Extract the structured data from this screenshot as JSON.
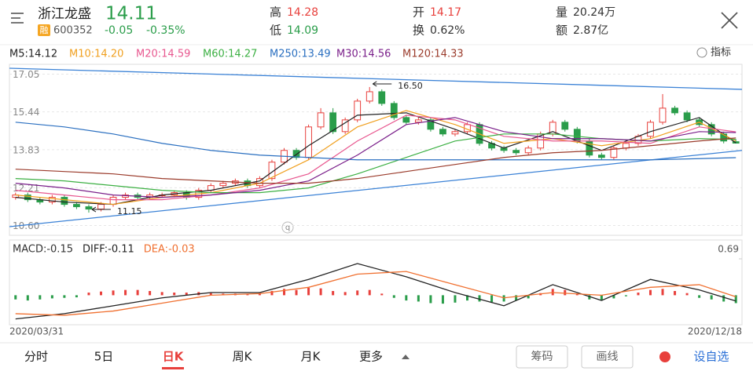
{
  "header": {
    "name": "浙江龙盛",
    "price": "14.11",
    "badge": "融",
    "code": "600352",
    "change": "-0.05",
    "change_pct": "-0.35%",
    "stats": [
      {
        "label": "高",
        "value": "14.28"
      },
      {
        "label": "低",
        "value": "14.09"
      },
      {
        "label": "开",
        "value": "14.17"
      },
      {
        "label": "换",
        "value": "0.62%"
      },
      {
        "label": "量",
        "value": "20.24万"
      },
      {
        "label": "额",
        "value": "2.87亿"
      }
    ]
  },
  "indicator_button": "指标",
  "chart_data": [
    {
      "type": "candlestick",
      "up_color": "#e8403c",
      "down_color": "#2a9d4a",
      "grid": true,
      "xlim": [
        -0.5,
        59.5
      ],
      "ylim": [
        10.45,
        17.2
      ],
      "yticks": [
        17.05,
        15.44,
        13.83,
        12.21,
        {
          "value": 10.6,
          "label": "10.60"
        }
      ],
      "open": [
        11.8,
        11.9,
        11.7,
        11.6,
        11.8,
        11.5,
        11.4,
        11.3,
        11.5,
        11.8,
        11.9,
        11.8,
        11.9,
        11.9,
        12.0,
        11.8,
        12.1,
        12.3,
        12.4,
        12.5,
        12.3,
        12.6,
        13.3,
        13.8,
        13.5,
        14.8,
        15.4,
        14.6,
        15.1,
        15.9,
        16.3,
        15.8,
        15.2,
        15.0,
        15.1,
        14.7,
        14.5,
        14.6,
        14.9,
        14.1,
        13.9,
        13.8,
        13.7,
        13.9,
        14.5,
        15.0,
        14.7,
        14.2,
        13.6,
        13.5,
        13.9,
        14.1,
        14.4,
        15.0,
        15.6,
        15.4,
        15.1,
        14.9,
        14.5,
        14.17
      ],
      "high": [
        12.0,
        12.0,
        11.8,
        11.9,
        11.9,
        11.6,
        11.5,
        11.6,
        11.9,
        12.0,
        12.0,
        12.0,
        12.0,
        12.1,
        12.1,
        12.2,
        12.4,
        12.5,
        12.6,
        12.6,
        12.7,
        13.4,
        13.9,
        13.9,
        14.9,
        15.6,
        15.6,
        15.2,
        16.0,
        16.5,
        16.4,
        15.9,
        15.3,
        15.2,
        15.2,
        14.8,
        14.7,
        15.0,
        15.0,
        14.2,
        14.0,
        13.9,
        14.0,
        14.6,
        15.1,
        15.1,
        14.8,
        14.3,
        13.7,
        14.0,
        14.2,
        14.5,
        15.1,
        16.2,
        15.7,
        15.5,
        15.2,
        15.0,
        14.6,
        14.28
      ],
      "low": [
        11.7,
        11.6,
        11.5,
        11.5,
        11.4,
        11.3,
        11.15,
        11.2,
        11.4,
        11.7,
        11.7,
        11.7,
        11.8,
        11.8,
        11.7,
        11.7,
        12.0,
        12.2,
        12.3,
        12.2,
        12.2,
        12.5,
        13.2,
        13.4,
        13.4,
        14.7,
        14.5,
        14.5,
        15.0,
        15.8,
        15.7,
        15.1,
        14.9,
        14.9,
        14.6,
        14.4,
        14.4,
        14.5,
        14.0,
        13.8,
        13.7,
        13.6,
        13.6,
        13.8,
        14.4,
        14.6,
        14.1,
        13.5,
        13.4,
        13.4,
        13.8,
        14.0,
        14.3,
        14.9,
        15.3,
        15.0,
        14.8,
        14.4,
        14.1,
        14.09
      ],
      "close": [
        11.9,
        11.7,
        11.6,
        11.8,
        11.5,
        11.4,
        11.3,
        11.5,
        11.8,
        11.9,
        11.8,
        11.9,
        11.9,
        12.0,
        11.8,
        12.1,
        12.3,
        12.4,
        12.5,
        12.3,
        12.6,
        13.3,
        13.8,
        13.5,
        14.8,
        15.4,
        14.6,
        15.1,
        15.9,
        16.3,
        15.8,
        15.2,
        15.0,
        15.1,
        14.7,
        14.5,
        14.6,
        14.9,
        14.1,
        13.9,
        13.8,
        13.7,
        13.9,
        14.5,
        15.0,
        14.7,
        14.2,
        13.6,
        13.5,
        13.9,
        14.1,
        14.4,
        15.0,
        15.6,
        15.4,
        15.1,
        14.9,
        14.5,
        14.2,
        14.11
      ],
      "ma_x": [
        0,
        4,
        8,
        12,
        16,
        20,
        24,
        28,
        32,
        36,
        40,
        44,
        48,
        52,
        56,
        59
      ],
      "series": [
        {
          "name": "M5:14.12",
          "color": "#222222",
          "values": [
            11.8,
            11.6,
            11.5,
            11.9,
            12.1,
            12.5,
            14.0,
            15.3,
            15.4,
            14.7,
            13.9,
            14.6,
            13.8,
            14.6,
            15.2,
            14.12
          ]
        },
        {
          "name": "M10:14.20",
          "color": "#f0a020",
          "values": [
            11.9,
            11.7,
            11.5,
            11.8,
            12.0,
            12.4,
            13.4,
            14.8,
            15.5,
            14.9,
            14.1,
            14.3,
            14.0,
            14.3,
            15.0,
            14.2
          ]
        },
        {
          "name": "M20:14.59",
          "color": "#e8578f",
          "values": [
            12.1,
            11.9,
            11.7,
            11.7,
            11.9,
            12.2,
            12.8,
            14.2,
            15.3,
            15.1,
            14.4,
            14.2,
            14.2,
            14.1,
            14.8,
            14.59
          ]
        },
        {
          "name": "M60:14.27",
          "color": "#3cb043",
          "values": [
            12.6,
            12.5,
            12.3,
            12.1,
            12.0,
            12.0,
            12.2,
            12.8,
            13.5,
            14.2,
            14.5,
            14.5,
            14.3,
            14.2,
            14.3,
            14.27
          ]
        },
        {
          "name": "M250:13.49",
          "color": "#2a6fc0",
          "values": [
            15.0,
            14.8,
            14.5,
            14.1,
            13.8,
            13.6,
            13.5,
            13.4,
            13.4,
            13.4,
            13.4,
            13.4,
            13.4,
            13.4,
            13.45,
            13.49
          ]
        },
        {
          "name": "M30:14.56",
          "color": "#7a1f8a",
          "values": [
            12.4,
            12.2,
            11.9,
            11.8,
            11.9,
            12.1,
            12.5,
            13.6,
            14.9,
            15.2,
            14.6,
            14.3,
            14.3,
            14.2,
            14.6,
            14.56
          ]
        },
        {
          "name": "M120:14.33",
          "color": "#9a3a2a",
          "values": [
            13.0,
            12.9,
            12.8,
            12.6,
            12.5,
            12.4,
            12.4,
            12.6,
            12.9,
            13.2,
            13.5,
            13.7,
            13.8,
            14.0,
            14.2,
            14.33
          ]
        }
      ],
      "trendlines": [
        {
          "color": "#3b82d6",
          "x": [
            -0.5,
            59.5
          ],
          "values": [
            17.3,
            16.4
          ]
        },
        {
          "color": "#3b82d6",
          "x": [
            -0.5,
            59.5
          ],
          "values": [
            10.55,
            13.8
          ]
        }
      ],
      "annotations": [
        {
          "text": "16.50",
          "x": 29,
          "y": 16.5
        },
        {
          "text": "11.15",
          "x": 6,
          "y": 11.15
        }
      ]
    },
    {
      "type": "macd",
      "up_color": "#e8403c",
      "down_color": "#2a9d4a",
      "xlim": [
        -0.5,
        59.5
      ],
      "ylim": [
        -0.5,
        0.69
      ],
      "yticks": [
        0.69
      ],
      "xticks": [
        {
          "value": 0,
          "label": "2020/03/31"
        },
        {
          "value": 59,
          "label": "2020/12/18"
        }
      ],
      "series": [
        {
          "name": "MACD:-0.15",
          "kind": "bar",
          "color": "#333333",
          "values": [
            -0.08,
            -0.1,
            -0.08,
            -0.06,
            -0.05,
            -0.04,
            0.05,
            0.07,
            0.09,
            0.1,
            0.1,
            0.08,
            0.06,
            0.05,
            0.05,
            0.06,
            0.04,
            0.03,
            0.03,
            0.02,
            0.04,
            0.08,
            0.12,
            0.1,
            0.14,
            0.13,
            0.08,
            0.06,
            0.09,
            0.1,
            0.03,
            -0.05,
            -0.1,
            -0.12,
            -0.15,
            -0.16,
            -0.14,
            -0.1,
            -0.12,
            -0.13,
            -0.12,
            -0.1,
            -0.06,
            0.04,
            0.12,
            0.1,
            0.02,
            -0.08,
            -0.1,
            -0.06,
            -0.02,
            0.05,
            0.1,
            0.12,
            0.08,
            0.04,
            -0.05,
            -0.08,
            -0.12,
            -0.15
          ]
        },
        {
          "name": "DIFF:-0.11",
          "kind": "line",
          "color": "#222222",
          "x": [
            0,
            4,
            8,
            12,
            16,
            20,
            24,
            28,
            32,
            36,
            40,
            44,
            48,
            52,
            56,
            59
          ],
          "values": [
            -0.45,
            -0.35,
            -0.2,
            -0.05,
            0.05,
            0.05,
            0.3,
            0.6,
            0.35,
            0.05,
            -0.2,
            0.2,
            -0.1,
            0.3,
            0.1,
            -0.11
          ]
        },
        {
          "name": "DEA:-0.03",
          "kind": "line",
          "color": "#f07030",
          "x": [
            0,
            4,
            8,
            12,
            16,
            20,
            24,
            28,
            32,
            36,
            40,
            44,
            48,
            52,
            56,
            59
          ],
          "values": [
            -0.35,
            -0.38,
            -0.3,
            -0.15,
            0,
            0.03,
            0.15,
            0.4,
            0.45,
            0.2,
            -0.05,
            0.05,
            0,
            0.15,
            0.2,
            -0.03
          ]
        }
      ]
    }
  ],
  "tabs": {
    "items": [
      "分时",
      "5日",
      "日K",
      "周K",
      "月K",
      "更多"
    ],
    "active": 2
  },
  "buttons": [
    "筹码",
    "画线"
  ],
  "add_watchlist": "设自选"
}
